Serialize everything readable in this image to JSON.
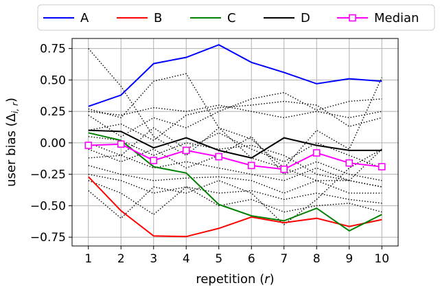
{
  "chart_data": {
    "type": "line",
    "xlabel": "repetition",
    "xlabel_var": "r",
    "ylabel": "user bias",
    "ylabel_symbol": "Δ",
    "ylabel_sub": "i, r",
    "x": [
      1,
      2,
      3,
      4,
      5,
      6,
      7,
      8,
      9,
      10
    ],
    "xlim": [
      0.5,
      10.5
    ],
    "ylim": [
      -0.82,
      0.83
    ],
    "yticks": [
      -0.75,
      -0.5,
      -0.25,
      0.0,
      0.25,
      0.5,
      0.75
    ],
    "ytick_labels": [
      "−0.75",
      "−0.50",
      "−0.25",
      "0.00",
      "0.25",
      "0.50",
      "0.75"
    ],
    "grid": true,
    "legend_position": "top, outside, spanning full width",
    "series": [
      {
        "name": "A",
        "color": "#0000ff",
        "style": "solid",
        "values": [
          0.29,
          0.38,
          0.63,
          0.68,
          0.78,
          0.64,
          0.56,
          0.47,
          0.51,
          0.49
        ]
      },
      {
        "name": "B",
        "color": "#ff0000",
        "style": "solid",
        "values": [
          -0.27,
          -0.54,
          -0.74,
          -0.745,
          -0.68,
          -0.59,
          -0.635,
          -0.6,
          -0.665,
          -0.61
        ]
      },
      {
        "name": "C",
        "color": "#008000",
        "style": "solid",
        "values": [
          0.08,
          0.02,
          -0.19,
          -0.24,
          -0.49,
          -0.58,
          -0.62,
          -0.52,
          -0.7,
          -0.57
        ]
      },
      {
        "name": "D",
        "color": "#000000",
        "style": "solid",
        "values": [
          0.1,
          0.09,
          -0.04,
          0.04,
          -0.06,
          -0.12,
          0.04,
          -0.02,
          -0.06,
          -0.06
        ]
      },
      {
        "name": "Median",
        "color": "#ff00ff",
        "style": "solid",
        "marker": "square-open",
        "values": [
          -0.02,
          -0.01,
          -0.14,
          -0.06,
          -0.11,
          -0.18,
          -0.21,
          -0.08,
          -0.16,
          -0.19
        ]
      }
    ],
    "other_users": [
      {
        "color": "#000000",
        "style": "dotted",
        "values": [
          0.75,
          0.45,
          0.05,
          -0.1,
          0.12,
          0.03,
          -0.2,
          0.1,
          -0.05,
          0.52
        ]
      },
      {
        "color": "#000000",
        "style": "dotted",
        "values": [
          0.27,
          0.2,
          0.49,
          0.55,
          0.12,
          -0.12,
          -0.2,
          -0.3,
          -0.3,
          -0.35
        ]
      },
      {
        "color": "#000000",
        "style": "dotted",
        "values": [
          0.25,
          0.22,
          0.28,
          0.25,
          0.3,
          0.25,
          0.2,
          0.25,
          0.2,
          0.25
        ]
      },
      {
        "color": "#000000",
        "style": "dotted",
        "values": [
          0.22,
          0.05,
          0.2,
          0.12,
          0.25,
          0.35,
          0.4,
          0.26,
          0.33,
          0.35
        ]
      },
      {
        "color": "#000000",
        "style": "dotted",
        "values": [
          0.1,
          0.15,
          0.02,
          0.22,
          0.28,
          0.3,
          0.33,
          0.3,
          0.13,
          0.2
        ]
      },
      {
        "color": "#000000",
        "style": "dotted",
        "values": [
          0.0,
          -0.1,
          0.12,
          -0.05,
          0.08,
          -0.05,
          -0.15,
          0.0,
          -0.1,
          -0.2
        ]
      },
      {
        "color": "#000000",
        "style": "dotted",
        "values": [
          -0.05,
          -0.15,
          -0.05,
          -0.2,
          -0.1,
          0.05,
          -0.25,
          -0.15,
          -0.25,
          -0.3
        ]
      },
      {
        "color": "#000000",
        "style": "dotted",
        "values": [
          -0.12,
          -0.1,
          -0.2,
          -0.15,
          -0.2,
          -0.25,
          -0.3,
          -0.2,
          -0.3,
          -0.35
        ]
      },
      {
        "color": "#000000",
        "style": "dotted",
        "values": [
          -0.18,
          -0.25,
          -0.3,
          -0.28,
          -0.27,
          -0.3,
          -0.4,
          -0.3,
          -0.4,
          -0.4
        ]
      },
      {
        "color": "#000000",
        "style": "dotted",
        "values": [
          -0.25,
          -0.3,
          -0.4,
          -0.35,
          -0.4,
          -0.38,
          -0.45,
          -0.4,
          -0.45,
          -0.48
        ]
      },
      {
        "color": "#000000",
        "style": "dotted",
        "values": [
          -0.38,
          -0.6,
          -0.35,
          -0.4,
          -0.3,
          -0.4,
          -0.65,
          -0.45,
          -0.2,
          -0.05
        ]
      },
      {
        "color": "#000000",
        "style": "dotted",
        "values": [
          -0.3,
          -0.4,
          -0.57,
          -0.35,
          -0.5,
          -0.45,
          -0.55,
          -0.5,
          -0.48,
          -0.55
        ]
      },
      {
        "color": "#000000",
        "style": "dotted",
        "values": [
          0.05,
          0.02,
          -0.1,
          0.0,
          -0.05,
          -0.02,
          -0.1,
          -0.25,
          -0.3,
          -0.05
        ]
      }
    ]
  }
}
